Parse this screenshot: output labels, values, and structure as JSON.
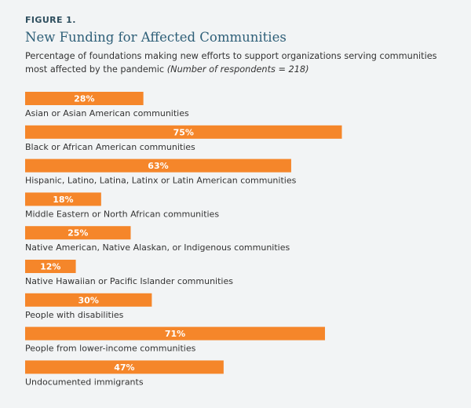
{
  "figure_label": "FIGURE 1.",
  "subtitle_main": "Percentage of foundations making new efforts to support organizations serving communities most affected by the pandemic",
  "subtitle_note": "(Number of respondents = 218)",
  "colors": {
    "bar": "#f5862a",
    "title": "#2e5f78",
    "background": "#f2f4f5"
  },
  "chart_data": {
    "type": "bar",
    "orientation": "horizontal",
    "title": "New Funding for Affected Communities",
    "categories": [
      "Asian or Asian American communities",
      "Black or African American communities",
      "Hispanic, Latino, Latina, Latinx or Latin American communities",
      "Middle Eastern or North African communities",
      "Native American, Native Alaskan, or Indigenous communities",
      "Native Hawaiian or Pacific Islander communities",
      "People with disabilities",
      "People from lower-income communities",
      "Undocumented immigrants"
    ],
    "values": [
      28,
      75,
      63,
      18,
      25,
      12,
      30,
      71,
      47
    ],
    "value_labels": [
      "28%",
      "75%",
      "63%",
      "18%",
      "25%",
      "12%",
      "30%",
      "71%",
      "47%"
    ],
    "unit": "%",
    "xlim": [
      0,
      100
    ],
    "grid": false,
    "legend": "none"
  }
}
